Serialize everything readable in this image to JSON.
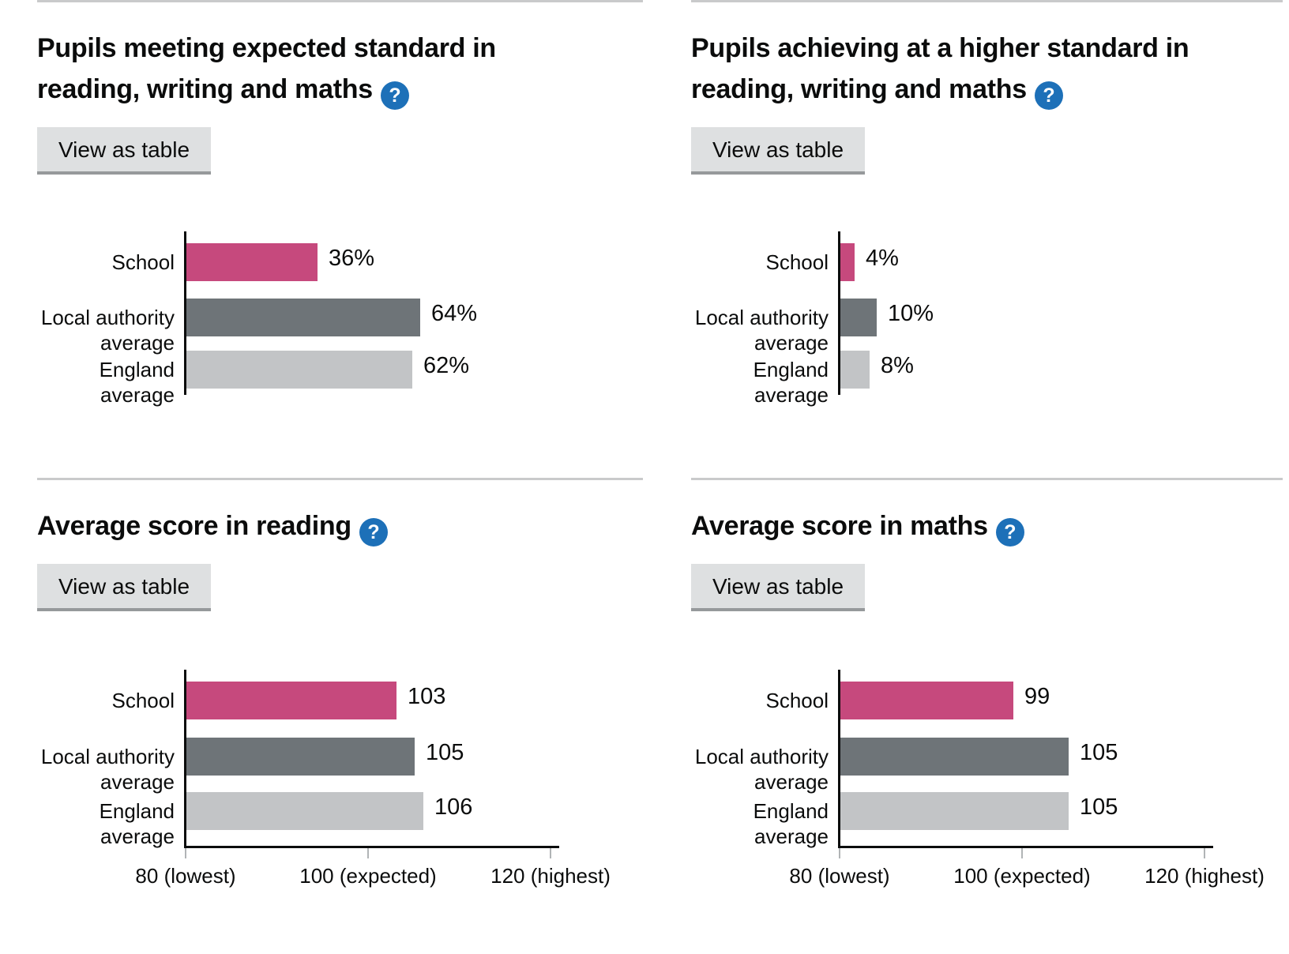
{
  "ui": {
    "view_as_table_label": "View as table",
    "help_glyph": "?"
  },
  "colors": {
    "series": [
      "#c6497d",
      "#6e7478",
      "#c2c4c6"
    ],
    "series_names": [
      "school",
      "local-authority-average",
      "england-average"
    ],
    "help_icon_bg": "#1d70b8",
    "axis": "#0b0c0c",
    "tick": "#b1b4b6",
    "divider": "#c9cacb",
    "button_bg": "#dee0e1",
    "button_border": "#96999b",
    "text": "#0b0c0c"
  },
  "chart_data": [
    {
      "type": "bar",
      "orientation": "horizontal",
      "title": "Pupils meeting expected standard in\nreading, writing and maths",
      "categories": [
        "School",
        "Local authority\naverage",
        "England average"
      ],
      "values": [
        36,
        64,
        62
      ],
      "value_labels": [
        "36%",
        "64%",
        "62%"
      ],
      "xlim": [
        0,
        100
      ],
      "x_axis": {
        "ticks": []
      },
      "grid": false,
      "legend": false
    },
    {
      "type": "bar",
      "orientation": "horizontal",
      "title": "Pupils achieving at a higher standard in\nreading, writing and maths",
      "categories": [
        "School",
        "Local authority\naverage",
        "England average"
      ],
      "values": [
        4,
        10,
        8
      ],
      "value_labels": [
        "4%",
        "10%",
        "8%"
      ],
      "xlim": [
        0,
        100
      ],
      "x_axis": {
        "ticks": []
      },
      "grid": false,
      "legend": false
    },
    {
      "type": "bar",
      "orientation": "horizontal",
      "title": "Average score in reading",
      "categories": [
        "School",
        "Local authority\naverage",
        "England average"
      ],
      "values": [
        103,
        105,
        106
      ],
      "value_labels": [
        "103",
        "105",
        "106"
      ],
      "xlim": [
        80,
        120
      ],
      "x_axis": {
        "ticks": [
          {
            "value": 80,
            "label": "80 (lowest)"
          },
          {
            "value": 100,
            "label": "100 (expected)"
          },
          {
            "value": 120,
            "label": "120 (highest)"
          }
        ]
      },
      "grid": false,
      "legend": false
    },
    {
      "type": "bar",
      "orientation": "horizontal",
      "title": "Average score in maths",
      "categories": [
        "School",
        "Local authority\naverage",
        "England average"
      ],
      "values": [
        99,
        105,
        105
      ],
      "value_labels": [
        "99",
        "105",
        "105"
      ],
      "xlim": [
        80,
        120
      ],
      "x_axis": {
        "ticks": [
          {
            "value": 80,
            "label": "80 (lowest)"
          },
          {
            "value": 100,
            "label": "100 (expected)"
          },
          {
            "value": 120,
            "label": "120 (highest)"
          }
        ]
      },
      "grid": false,
      "legend": false
    }
  ]
}
